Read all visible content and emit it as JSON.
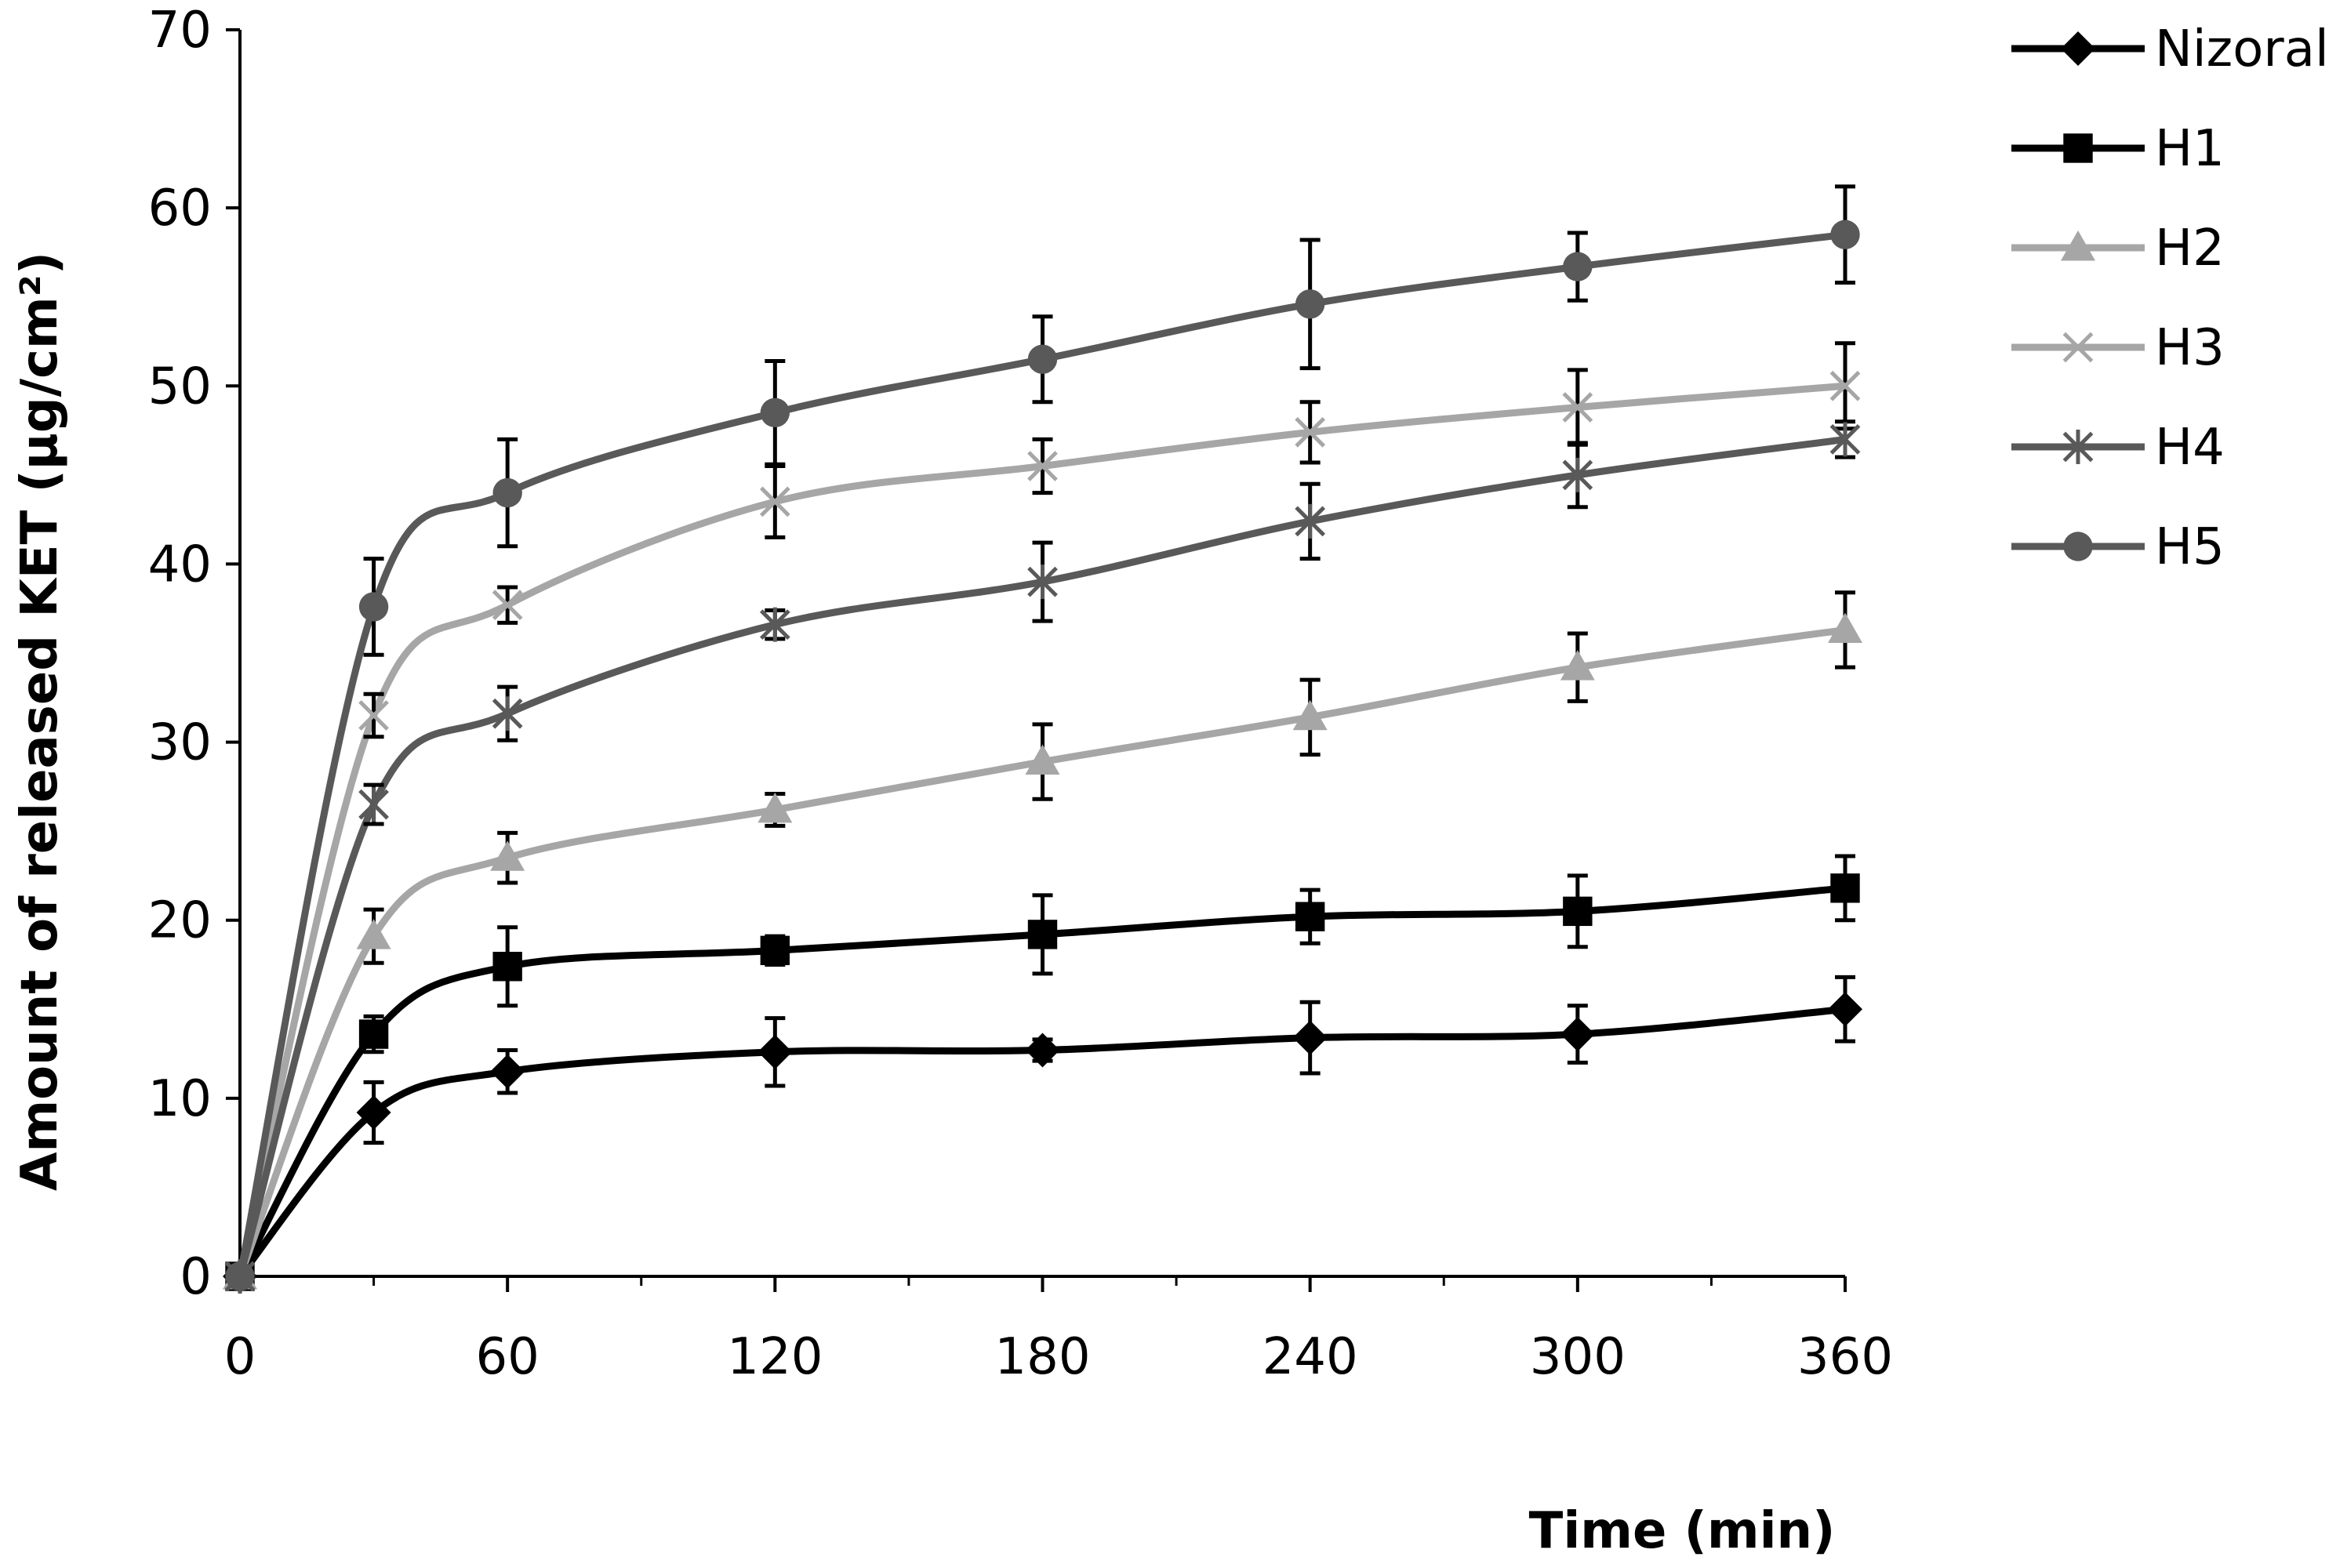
{
  "chart_data": {
    "type": "line",
    "title": "",
    "xlabel": "Time (min)",
    "ylabel": "Amount of released KET (µg/cm²)",
    "xlim": [
      0,
      360
    ],
    "ylim": [
      0,
      70
    ],
    "x_ticks": [
      "0",
      "60",
      "120",
      "180",
      "240",
      "300",
      "360"
    ],
    "y_ticks": [
      "0",
      "10",
      "20",
      "30",
      "40",
      "50",
      "60",
      "70"
    ],
    "grid": false,
    "legend_position": "right",
    "x": [
      0,
      30,
      60,
      120,
      180,
      240,
      300,
      360
    ],
    "series": [
      {
        "name": "Nizoral",
        "marker": "diamond",
        "color": "#000000",
        "values": [
          0,
          9.2,
          11.5,
          12.6,
          12.7,
          13.4,
          13.6,
          15.0
        ],
        "errors": [
          0,
          1.7,
          1.2,
          1.9,
          0.6,
          2.0,
          1.6,
          1.8
        ]
      },
      {
        "name": "H1",
        "marker": "square",
        "color": "#000000",
        "values": [
          0,
          13.6,
          17.4,
          18.3,
          19.2,
          20.2,
          20.5,
          21.8
        ],
        "errors": [
          0,
          1.0,
          2.2,
          0.8,
          2.2,
          1.5,
          2.0,
          1.8
        ]
      },
      {
        "name": "H2",
        "marker": "triangle",
        "color": "#a6a6a6",
        "values": [
          0,
          19.1,
          23.5,
          26.2,
          28.9,
          31.4,
          34.2,
          36.3
        ],
        "errors": [
          0,
          1.5,
          1.4,
          0.9,
          2.1,
          2.1,
          1.9,
          2.1
        ]
      },
      {
        "name": "H3",
        "marker": "x",
        "color": "#a6a6a6",
        "values": [
          0,
          31.5,
          37.7,
          43.5,
          45.5,
          47.4,
          48.8,
          50.0
        ],
        "errors": [
          0,
          1.2,
          1.0,
          2.0,
          1.5,
          1.7,
          2.1,
          2.4
        ]
      },
      {
        "name": "H4",
        "marker": "star",
        "color": "#595959",
        "values": [
          0,
          26.5,
          31.6,
          36.6,
          39.0,
          42.4,
          45.0,
          47.0
        ],
        "errors": [
          0,
          1.1,
          1.5,
          0.8,
          2.2,
          2.1,
          1.8,
          1.0
        ]
      },
      {
        "name": "H5",
        "marker": "circle",
        "color": "#595959",
        "values": [
          0,
          37.6,
          44.0,
          48.5,
          51.5,
          54.6,
          56.7,
          58.5
        ],
        "errors": [
          0,
          2.7,
          3.0,
          2.9,
          2.4,
          3.6,
          1.9,
          2.7
        ]
      }
    ]
  }
}
